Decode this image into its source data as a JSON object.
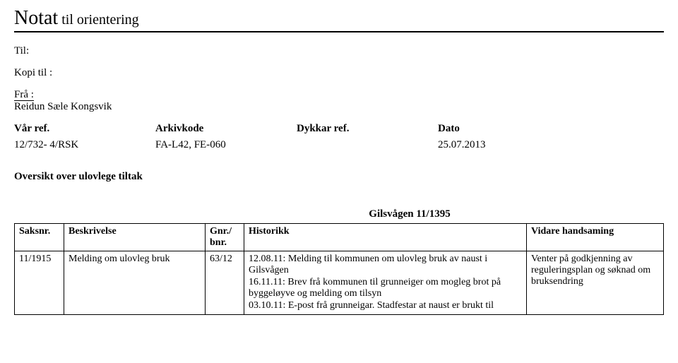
{
  "title": {
    "main": "Notat",
    "sub": " til orientering"
  },
  "fields": {
    "til_label": "Til:",
    "kopi_label": "Kopi til :",
    "fra_label": "Frå :",
    "fra_value": "Reidun Sæle Kongsvik"
  },
  "ref": {
    "headers": {
      "var": "Vår ref.",
      "arkiv": "Arkivkode",
      "dykkar": "Dykkar ref.",
      "dato": "Dato"
    },
    "values": {
      "var": "12/732- 4/RSK",
      "arkiv": "FA-L42, FE-060",
      "dykkar": "",
      "dato": "25.07.2013"
    }
  },
  "section_title": "Oversikt over ulovlege tiltak",
  "table": {
    "subheader": "Gilsvågen 11/1395",
    "columns": {
      "saksnr": "Saksnr.",
      "beskrivelse": "Beskrivelse",
      "gnr": "Gnr./\nbnr.",
      "historikk": "Historikk",
      "vidare": "Vidare handsaming"
    },
    "row": {
      "saksnr": "11/1915",
      "beskrivelse": "Melding om ulovleg bruk",
      "gnr": "63/12",
      "historikk": [
        "12.08.11: Melding til kommunen om ulovleg bruk av naust i Gilsvågen",
        "16.11.11: Brev frå kommunen til grunneiger om mogleg brot på byggeløyve og melding om tilsyn",
        "03.10.11: E-post frå grunneigar. Stadfestar at naust er brukt til"
      ],
      "vidare": "Venter på godkjenning av reguleringsplan og søknad om bruksendring"
    }
  }
}
